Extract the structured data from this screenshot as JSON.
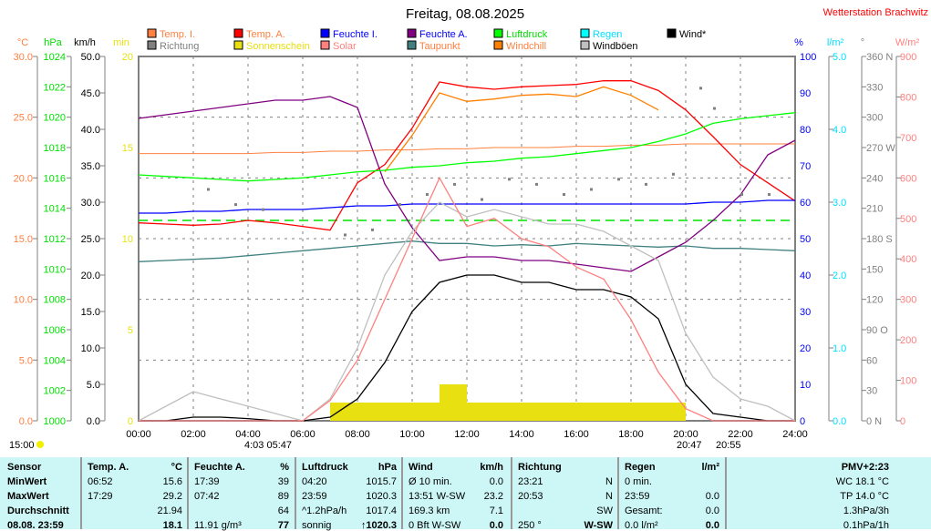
{
  "header": {
    "title": "Freitag, 08.08.2025",
    "station": "Wetterstation Brachwitz"
  },
  "legend": [
    {
      "label": "Temp. I.",
      "color": "#ff8040",
      "text": "#ff8040"
    },
    {
      "label": "Temp. A.",
      "color": "#ff0000",
      "text": "#ff8040"
    },
    {
      "label": "Feuchte I.",
      "color": "#0000ff",
      "text": "#0000ff"
    },
    {
      "label": "Feuchte A.",
      "color": "#800080",
      "text": "#0000ff"
    },
    {
      "label": "Luftdruck",
      "color": "#00ff00",
      "text": "#00e000"
    },
    {
      "label": "Regen",
      "color": "#00ffff",
      "text": "#00e0ff"
    },
    {
      "label": "Wind*",
      "color": "#000000",
      "text": "#000000"
    },
    {
      "label": "Richtung",
      "color": "#808080",
      "text": "#808080"
    },
    {
      "label": "Sonnenschein",
      "color": "#e8e010",
      "text": "#e8e010"
    },
    {
      "label": "Solar",
      "color": "#ff8080",
      "text": "#ff8080"
    },
    {
      "label": "Taupunkt",
      "color": "#408080",
      "text": "#ff8040"
    },
    {
      "label": "Windchill",
      "color": "#ff8000",
      "text": "#ff8040"
    },
    {
      "label": "Windböen",
      "color": "#c0c0c0",
      "text": "#000000"
    }
  ],
  "chart_data": {
    "type": "line",
    "title": "Freitag, 08.08.2025",
    "x_ticks": [
      "00:00",
      "02:00",
      "04:00",
      "06:00",
      "08:00",
      "10:00",
      "12:00",
      "14:00",
      "16:00",
      "18:00",
      "20:00",
      "22:00",
      "24:00"
    ],
    "x_hours": [
      0,
      1,
      2,
      3,
      4,
      5,
      6,
      7,
      8,
      9,
      10,
      11,
      12,
      13,
      14,
      15,
      16,
      17,
      18,
      19,
      20,
      21,
      22,
      23,
      24
    ],
    "axes": {
      "celsius": {
        "unit": "°C",
        "range": [
          0,
          30
        ],
        "ticks": [
          "30.0",
          "25.0",
          "20.0",
          "15.0",
          "10.0",
          "5.0",
          "0.0"
        ],
        "color": "#ff8040"
      },
      "hpa": {
        "unit": "hPa",
        "range": [
          1000,
          1024
        ],
        "ticks": [
          "1024",
          "1022",
          "1020",
          "1018",
          "1016",
          "1014",
          "1012",
          "1010",
          "1008",
          "1006",
          "1004",
          "1002",
          "1000"
        ],
        "color": "#00e000"
      },
      "kmh": {
        "unit": "km/h",
        "range": [
          0,
          50
        ],
        "ticks": [
          "50.0",
          "45.0",
          "40.0",
          "35.0",
          "30.0",
          "25.0",
          "20.0",
          "15.0",
          "10.0",
          "5.0",
          "0.0"
        ],
        "color": "#000000"
      },
      "min": {
        "unit": "min",
        "range": [
          0,
          20
        ],
        "ticks": [
          "20",
          "15",
          "10",
          "5",
          "0"
        ],
        "color": "#e8e010"
      },
      "pct": {
        "unit": "%",
        "range": [
          0,
          100
        ],
        "ticks": [
          "100",
          "90",
          "80",
          "70",
          "60",
          "50",
          "40",
          "30",
          "20",
          "10",
          "0"
        ],
        "color": "#0000ff"
      },
      "rain": {
        "unit": "l/m²",
        "range": [
          0,
          5
        ],
        "ticks": [
          "5.0",
          "4.0",
          "3.0",
          "2.0",
          "1.0",
          "0.0"
        ],
        "color": "#00e0ff"
      },
      "deg": {
        "unit": "°",
        "range": [
          0,
          360
        ],
        "ticks": [
          "360 N",
          "330",
          "300",
          "270 W",
          "240",
          "210",
          "180 S",
          "150",
          "120",
          "90  O",
          "60",
          "30",
          "0    N"
        ],
        "color": "#808080"
      },
      "solar": {
        "unit": "W/m²",
        "range": [
          0,
          900
        ],
        "ticks": [
          "900",
          "800",
          "700",
          "600",
          "500",
          "400",
          "300",
          "200",
          "100",
          "0"
        ],
        "color": "#ff8080"
      }
    },
    "series": [
      {
        "name": "Temp. I.",
        "axis": "celsius",
        "values": [
          22,
          22,
          22,
          22,
          22,
          22.1,
          22.1,
          22.2,
          22.2,
          22.3,
          22.3,
          22.4,
          22.4,
          22.5,
          22.5,
          22.5,
          22.6,
          22.6,
          22.7,
          22.7,
          22.8,
          22.8,
          22.8,
          22.8,
          22.8
        ]
      },
      {
        "name": "Temp. A.",
        "axis": "celsius",
        "values": [
          16.3,
          16.2,
          16.1,
          16.2,
          16.5,
          16.3,
          16.0,
          15.7,
          19.6,
          21.1,
          24.1,
          27.9,
          27.5,
          27.3,
          27.5,
          27.6,
          27.7,
          28.0,
          28.0,
          27.2,
          25.6,
          23.4,
          21.1,
          19.6,
          18.1
        ]
      },
      {
        "name": "Windchill",
        "axis": "celsius",
        "values": [
          null,
          null,
          null,
          null,
          null,
          null,
          null,
          null,
          null,
          20.5,
          23.5,
          27,
          26.3,
          26.5,
          26.8,
          26.9,
          26.7,
          27.5,
          26.8,
          25.6,
          null,
          null,
          null,
          null,
          null
        ]
      },
      {
        "name": "Taupunkt",
        "axis": "celsius",
        "values": [
          13.1,
          13.2,
          13.3,
          13.4,
          13.6,
          13.8,
          14.0,
          14.2,
          14.4,
          14.6,
          14.8,
          14.6,
          14.6,
          14.4,
          14.5,
          14.4,
          14.6,
          14.5,
          14.4,
          14.3,
          14.4,
          14.2,
          14.2,
          14.1,
          14.0
        ]
      },
      {
        "name": "Feuchte I.",
        "axis": "pct",
        "values": [
          57,
          57,
          57.5,
          57.5,
          58,
          58,
          58,
          58.5,
          59,
          59,
          59.5,
          59.5,
          59.5,
          59.5,
          59.5,
          59.5,
          59.5,
          59.5,
          59.5,
          59.5,
          59.5,
          60,
          60,
          60.5,
          60.5
        ]
      },
      {
        "name": "Feuchte A.",
        "axis": "pct",
        "values": [
          83,
          84,
          85,
          86,
          87,
          88,
          88,
          89,
          86,
          65,
          53,
          44,
          45,
          45,
          44,
          44,
          43,
          42,
          41,
          45,
          49,
          55,
          62,
          73,
          77
        ]
      },
      {
        "name": "Luftdruck",
        "axis": "hpa",
        "values": [
          1016.2,
          1016.1,
          1016.0,
          1015.9,
          1015.8,
          1015.9,
          1016.0,
          1016.2,
          1016.4,
          1016.5,
          1016.7,
          1016.8,
          1017.0,
          1017.1,
          1017.3,
          1017.4,
          1017.6,
          1017.8,
          1018.0,
          1018.4,
          1018.9,
          1019.6,
          1019.9,
          1020.1,
          1020.3
        ]
      },
      {
        "name": "Wind*",
        "axis": "kmh",
        "values": [
          0,
          0,
          0.5,
          0.5,
          0.3,
          0,
          0,
          0.5,
          3,
          8,
          15,
          19,
          20,
          20,
          19,
          19,
          18,
          18,
          17,
          14,
          5,
          1,
          0.5,
          0,
          0
        ]
      },
      {
        "name": "Windböen",
        "axis": "kmh",
        "values": [
          0,
          2,
          4,
          3,
          2,
          1,
          0,
          3,
          10,
          20,
          26,
          30,
          28,
          29,
          28,
          27,
          27,
          26,
          24,
          22,
          12,
          6,
          3,
          2,
          0
        ]
      },
      {
        "name": "Solar",
        "axis": "solar",
        "values": [
          0,
          0,
          0,
          0,
          0,
          0,
          0,
          50,
          150,
          300,
          450,
          600,
          480,
          500,
          450,
          430,
          380,
          350,
          250,
          120,
          30,
          0,
          0,
          0,
          0
        ]
      },
      {
        "name": "Sonnenschein",
        "axis": "min",
        "values": [
          0,
          0,
          0,
          0,
          0,
          0,
          0,
          1,
          1,
          1,
          1,
          2,
          1,
          1,
          1,
          1,
          1,
          1,
          1,
          1,
          0,
          0,
          0,
          0,
          0
        ]
      }
    ],
    "richtung_points": [
      [
        2.5,
        230
      ],
      [
        3.5,
        215
      ],
      [
        4.5,
        210
      ],
      [
        7.5,
        185
      ],
      [
        8.5,
        190
      ],
      [
        9.5,
        215
      ],
      [
        10.5,
        225
      ],
      [
        11.5,
        235
      ],
      [
        12.5,
        220
      ],
      [
        13.5,
        240
      ],
      [
        14.5,
        235
      ],
      [
        15.5,
        225
      ],
      [
        16.5,
        230
      ],
      [
        17.5,
        240
      ],
      [
        18.5,
        235
      ],
      [
        19.5,
        245
      ],
      [
        20.5,
        330
      ],
      [
        21,
        310
      ],
      [
        22,
        225
      ],
      [
        23,
        225
      ]
    ],
    "reference_line_pct": 55
  },
  "sun": {
    "left_time": "15:00",
    "rise": "4:03  05:47",
    "set": "20:47",
    "set2": "20:55"
  },
  "table": {
    "columns": [
      {
        "title": "Temp. A.",
        "unit": "°C",
        "rows": [
          [
            "06:52",
            "15.6"
          ],
          [
            "17:29",
            "29.2"
          ],
          [
            "",
            "21.94"
          ],
          [
            "",
            "18.1"
          ]
        ]
      },
      {
        "title": "Feuchte A.",
        "unit": "%",
        "rows": [
          [
            "17:39",
            "39"
          ],
          [
            "07:42",
            "89"
          ],
          [
            "",
            "64"
          ],
          [
            "11.91 g/m³",
            "77"
          ]
        ]
      },
      {
        "title": "Luftdruck",
        "unit": "hPa",
        "rows": [
          [
            "04:20",
            "1015.7"
          ],
          [
            "23:59",
            "1020.3"
          ],
          [
            "^1.2hPa/h",
            "1017.4"
          ],
          [
            "sonnig",
            "↑1020.3"
          ]
        ]
      },
      {
        "title": "Wind",
        "unit": "km/h",
        "rows": [
          [
            "Ø 10 min.",
            "0.0"
          ],
          [
            "13:51    W-SW",
            "23.2"
          ],
          [
            "169.3 km",
            "7.1"
          ],
          [
            "0 Bft W-SW",
            "0.0"
          ]
        ]
      },
      {
        "title": "Richtung",
        "unit": "",
        "rows": [
          [
            "23:21",
            "N"
          ],
          [
            "20:53",
            "N"
          ],
          [
            "",
            "SW"
          ],
          [
            "250 °",
            "W-SW"
          ]
        ]
      },
      {
        "title": "Regen",
        "unit": "l/m²",
        "rows": [
          [
            "0 min.",
            ""
          ],
          [
            "  23:59",
            "0.0"
          ],
          [
            "Gesamt:",
            "0.0"
          ],
          [
            "0.0 l/m²",
            "0.0"
          ]
        ]
      }
    ],
    "sensor_labels": [
      "Sensor",
      "MinWert",
      "MaxWert",
      "Durchschnitt",
      "08.08. 23:59"
    ],
    "extra": [
      "PMV+2:23",
      "WC 18.1 °C",
      "TP 14.0 °C",
      "1.3hPa/3h",
      "0.1hPa/1h"
    ]
  }
}
